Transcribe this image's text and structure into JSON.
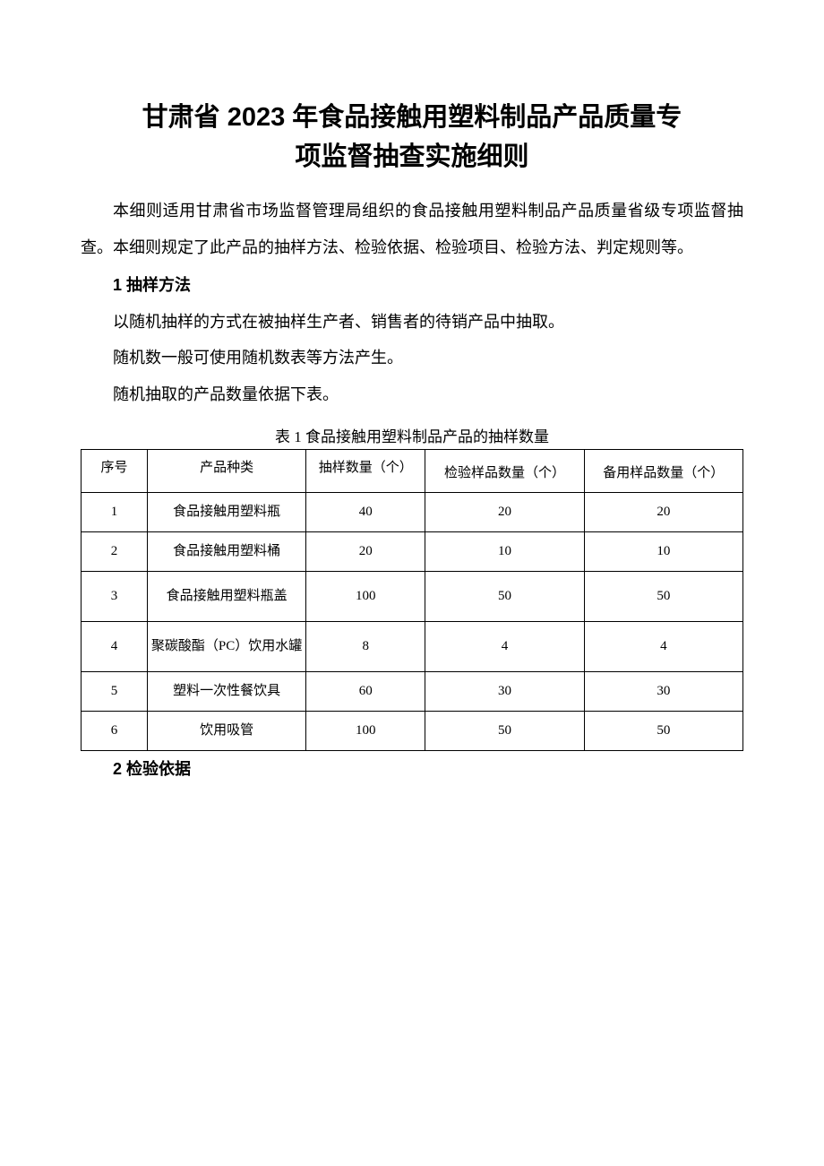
{
  "title": {
    "line1": "甘肃省 2023 年食品接触用塑料制品产品质量专",
    "line2": "项监督抽查实施细则"
  },
  "intro": "本细则适用甘肃省市场监督管理局组织的食品接触用塑料制品产品质量省级专项监督抽查。本细则规定了此产品的抽样方法、检验依据、检验项目、检验方法、判定规则等。",
  "section1": {
    "heading": "1 抽样方法",
    "line1": "以随机抽样的方式在被抽样生产者、销售者的待销产品中抽取。",
    "line2": "随机数一般可使用随机数表等方法产生。",
    "line3": "随机抽取的产品数量依据下表。"
  },
  "table1": {
    "caption": "表 1 食品接触用塑料制品产品的抽样数量",
    "columns": [
      "序号",
      "产品种类",
      "抽样数量（个）",
      "检验样品数量（个）",
      "备用样品数量（个）"
    ],
    "rows": [
      [
        "1",
        "食品接触用塑料瓶",
        "40",
        "20",
        "20"
      ],
      [
        "2",
        "食品接触用塑料桶",
        "20",
        "10",
        "10"
      ],
      [
        "3",
        "食品接触用塑料瓶盖",
        "100",
        "50",
        "50"
      ],
      [
        "4",
        "聚碳酸酯（PC）饮用水罐",
        "8",
        "4",
        "4"
      ],
      [
        "5",
        "塑料一次性餐饮具",
        "60",
        "30",
        "30"
      ],
      [
        "6",
        "饮用吸管",
        "100",
        "50",
        "50"
      ]
    ]
  },
  "section2": {
    "heading": "2 检验依据"
  }
}
